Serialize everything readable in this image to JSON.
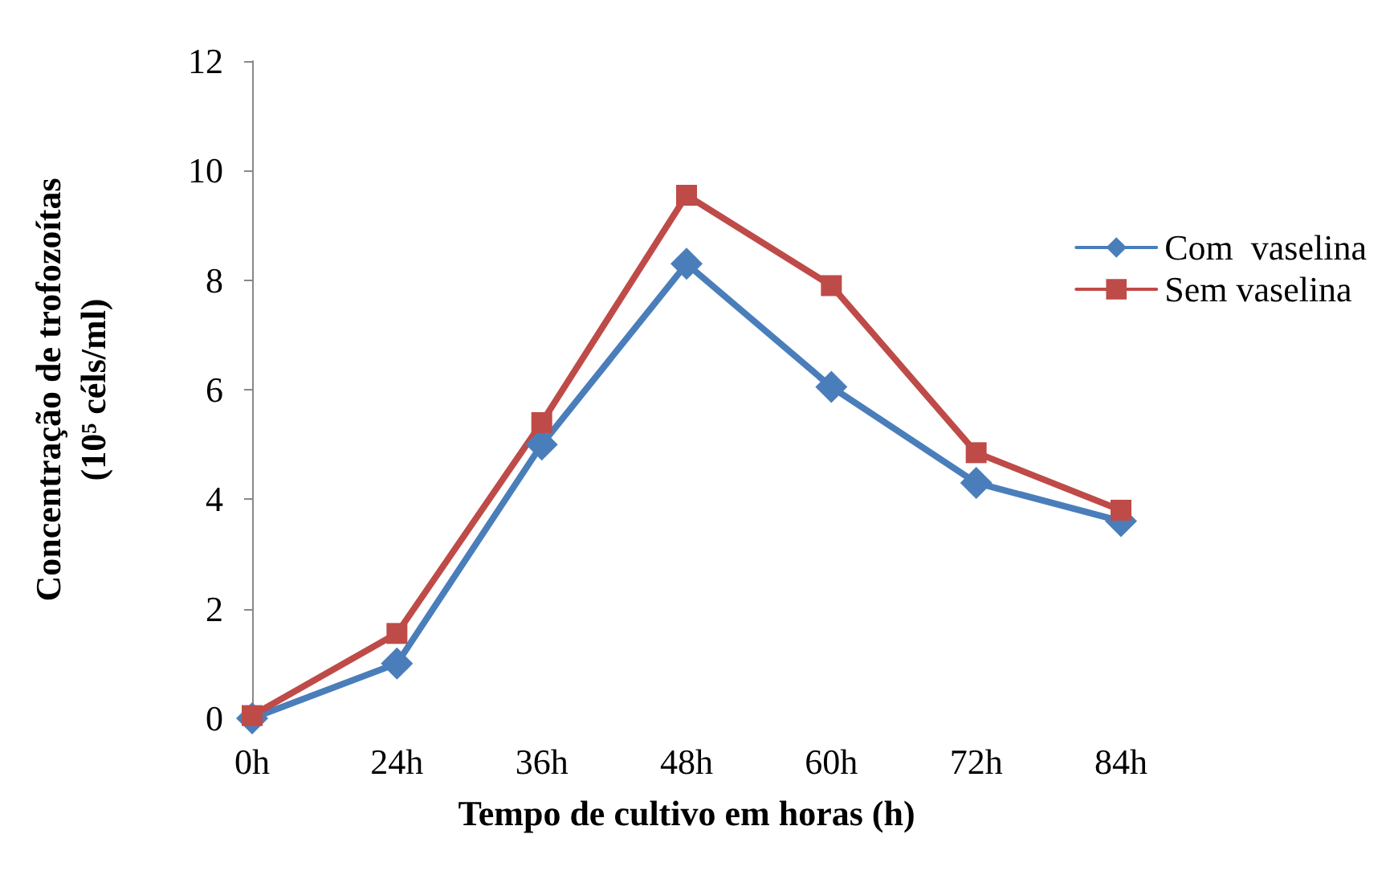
{
  "chart_data": {
    "type": "line",
    "xlabel": "Tempo de cultivo em horas (h)",
    "ylabel": "Concentração de trofozoítas\n(10⁵ céls/ml)",
    "categories": [
      "0h",
      "24h",
      "36h",
      "48h",
      "60h",
      "72h",
      "84h"
    ],
    "series": [
      {
        "name": "Com  vaselina",
        "color": "#4a7ebb",
        "marker": "diamond",
        "values": [
          0,
          1.0,
          5.0,
          8.3,
          6.05,
          4.3,
          3.6
        ]
      },
      {
        "name": "Sem vaselina",
        "color": "#be4b48",
        "marker": "square",
        "values": [
          0.05,
          1.55,
          5.4,
          9.55,
          7.9,
          4.85,
          3.8
        ]
      }
    ],
    "ylim": [
      0,
      12
    ],
    "yticks": [
      0,
      2,
      4,
      6,
      8,
      10,
      12
    ],
    "grid": false,
    "legend": "right",
    "line_style": "solid"
  }
}
